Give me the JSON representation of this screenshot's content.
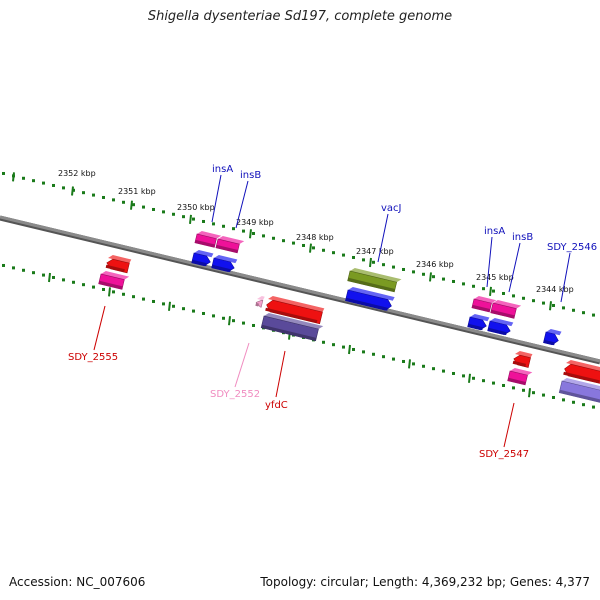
{
  "title": "Shigella dysenteriae Sd197, complete genome",
  "accession": "Accession: NC_007606",
  "summary": "Topology: circular; Length: 4,369,232 bp; Genes: 4,377",
  "colors": {
    "backbone": "#8a8a8a",
    "ruler": "#1a7a1a",
    "red": "#ee1111",
    "pink": "#ee1199",
    "blue": "#1111ee",
    "olive": "#7a9a22",
    "slate": "#5a4a9a",
    "lavender": "#8877dd",
    "faint_pink": "#f4a0cc",
    "label_blue": "#1111bb",
    "label_red": "#cc0000",
    "label_faint": "#f08cc0"
  },
  "ruler_labels": [
    "2352 kbp",
    "2351 kbp",
    "2350 kbp",
    "2349 kbp",
    "2348 kbp",
    "2347 kbp",
    "2346 kbp",
    "2345 kbp",
    "2344 kbp"
  ],
  "gene_labels": [
    {
      "id": "insA-1",
      "text": "insA",
      "color": "label_blue"
    },
    {
      "id": "insB-1",
      "text": "insB",
      "color": "label_blue"
    },
    {
      "id": "vacJ",
      "text": "vacJ",
      "color": "label_blue"
    },
    {
      "id": "insA-2",
      "text": "insA",
      "color": "label_blue"
    },
    {
      "id": "insB-2",
      "text": "insB",
      "color": "label_blue"
    },
    {
      "id": "SDY_2546",
      "text": "SDY_2546",
      "color": "label_blue"
    },
    {
      "id": "SDY_2555",
      "text": "SDY_2555",
      "color": "label_red"
    },
    {
      "id": "SDY_2552",
      "text": "SDY_2552",
      "color": "label_faint"
    },
    {
      "id": "yfdC",
      "text": "yfdC",
      "color": "label_red"
    },
    {
      "id": "SDY_2547",
      "text": "SDY_2547",
      "color": "label_red"
    }
  ]
}
